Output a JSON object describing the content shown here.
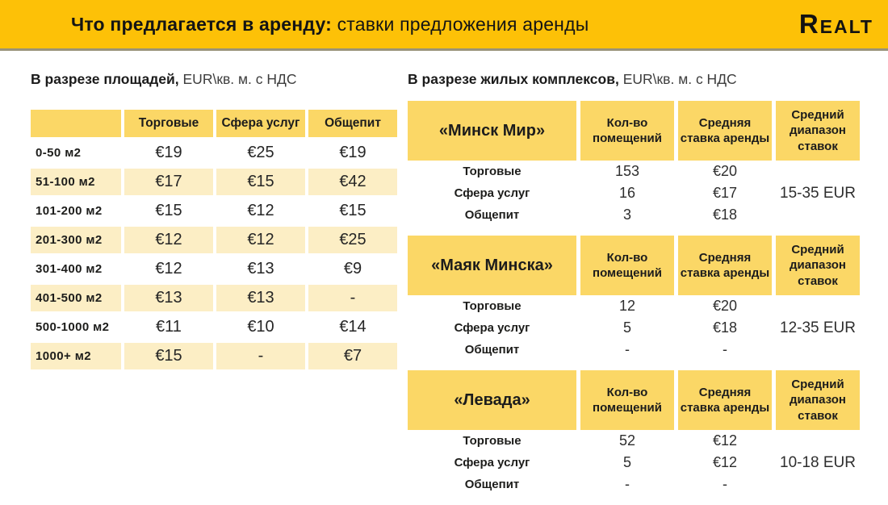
{
  "header": {
    "title_bold": "Что предлагается в аренду:",
    "title_regular": " ставки предложения аренды",
    "logo_text": "Realt"
  },
  "left_section": {
    "heading_bold": "В разрезе площадей,",
    "heading_regular": " EUR\\кв. м. с НДС",
    "table": {
      "column_headers": [
        "",
        "Торговые",
        "Сфера услуг",
        "Общепит"
      ],
      "rows": [
        {
          "label": "0-50 м2",
          "values": [
            "€19",
            "€25",
            "€19"
          ]
        },
        {
          "label": "51-100 м2",
          "values": [
            "€17",
            "€15",
            "€42"
          ]
        },
        {
          "label": "101-200 м2",
          "values": [
            "€15",
            "€12",
            "€15"
          ]
        },
        {
          "label": "201-300 м2",
          "values": [
            "€12",
            "€12",
            "€25"
          ]
        },
        {
          "label": "301-400 м2",
          "values": [
            "€12",
            "€13",
            "€9"
          ]
        },
        {
          "label": "401-500 м2",
          "values": [
            "€13",
            "€13",
            "-"
          ]
        },
        {
          "label": "500-1000 м2",
          "values": [
            "€11",
            "€10",
            "€14"
          ]
        },
        {
          "label": "1000+ м2",
          "values": [
            "€15",
            "-",
            "€7"
          ]
        }
      ]
    }
  },
  "right_section": {
    "heading_bold": "В разрезе жилых комплексов,",
    "heading_regular": " EUR\\кв. м. с НДС",
    "column_headers": [
      "Кол-во помещений",
      "Средняя ставка аренды",
      "Средний диапазон ставок"
    ],
    "tables": [
      {
        "name": "«Минск Мир»",
        "rows": [
          {
            "label": "Торговые",
            "count": "153",
            "rate": "€20"
          },
          {
            "label": "Сфера услуг",
            "count": "16",
            "rate": "€17"
          },
          {
            "label": "Общепит",
            "count": "3",
            "rate": "€18"
          }
        ],
        "range": "15-35 EUR"
      },
      {
        "name": "«Маяк Минска»",
        "rows": [
          {
            "label": "Торговые",
            "count": "12",
            "rate": "€20"
          },
          {
            "label": "Сфера услуг",
            "count": "5",
            "rate": "€18"
          },
          {
            "label": "Общепит",
            "count": "-",
            "rate": "-"
          }
        ],
        "range": "12-35 EUR"
      },
      {
        "name": "«Левада»",
        "rows": [
          {
            "label": "Торговые",
            "count": "52",
            "rate": "€12"
          },
          {
            "label": "Сфера услуг",
            "count": "5",
            "rate": "€12"
          },
          {
            "label": "Общепит",
            "count": "-",
            "rate": "-"
          }
        ],
        "range": "10-18 EUR"
      }
    ]
  },
  "colors": {
    "banner": "#FDC107",
    "table_header": "#FBD766",
    "row_stripe": "#FCEEC5",
    "text": "#1D1D1B"
  }
}
